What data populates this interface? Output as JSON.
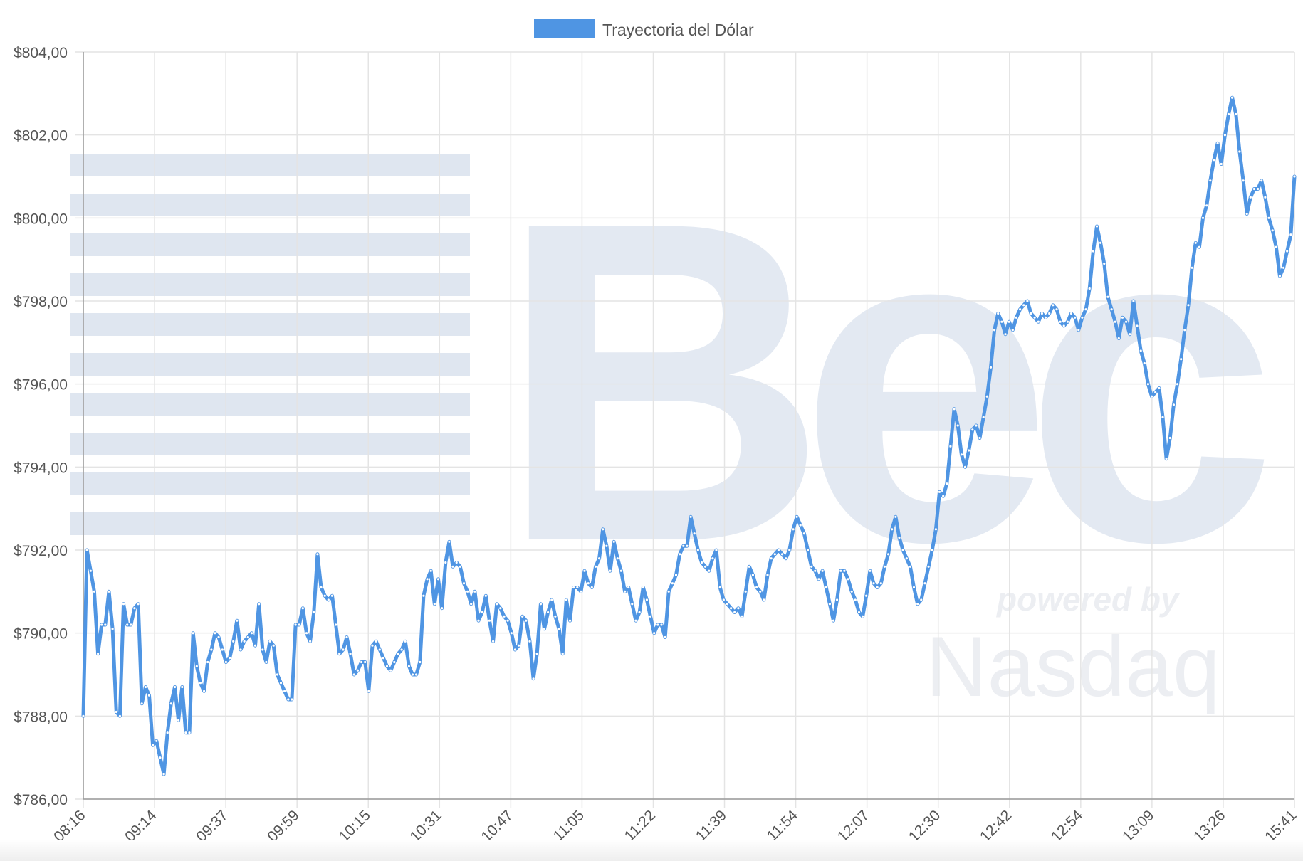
{
  "watermark": {
    "logo_text": "Bec",
    "powered_text": "powered by",
    "brand_text": "Nasdaq"
  },
  "colors": {
    "line": "#4f95e3",
    "grid": "#e4e4e4",
    "axis": "#9a9a9a",
    "watermark": "#dfe6f0"
  },
  "chart_data": {
    "type": "line",
    "title": "",
    "xlabel": "",
    "ylabel": "",
    "legend": {
      "label": "Trayectoria del Dólar",
      "position": "top-center"
    },
    "grid": true,
    "ylim": [
      786,
      804
    ],
    "y_ticks": [
      {
        "value": 804,
        "label": "$804,00"
      },
      {
        "value": 802,
        "label": "$802,00"
      },
      {
        "value": 800,
        "label": "$800,00"
      },
      {
        "value": 798,
        "label": "$798,00"
      },
      {
        "value": 796,
        "label": "$796,00"
      },
      {
        "value": 794,
        "label": "$794,00"
      },
      {
        "value": 792,
        "label": "$792,00"
      },
      {
        "value": 790,
        "label": "$790,00"
      },
      {
        "value": 788,
        "label": "$788,00"
      },
      {
        "value": 786,
        "label": "$786,00"
      }
    ],
    "x_ticks": [
      "08:16",
      "09:14",
      "09:37",
      "09:59",
      "10:15",
      "10:31",
      "10:47",
      "11:05",
      "11:22",
      "11:39",
      "11:54",
      "12:07",
      "12:30",
      "12:42",
      "12:54",
      "13:09",
      "13:26",
      "15:41"
    ],
    "series": [
      {
        "name": "Trayectoria del Dólar",
        "values": [
          788.0,
          792.0,
          791.5,
          791.0,
          789.5,
          790.2,
          790.2,
          791.0,
          790.1,
          788.1,
          788.0,
          790.7,
          790.2,
          790.2,
          790.6,
          790.7,
          788.3,
          788.7,
          788.5,
          787.3,
          787.4,
          787.0,
          786.6,
          787.6,
          788.3,
          788.7,
          787.9,
          788.7,
          787.6,
          787.6,
          790.0,
          789.2,
          788.8,
          788.6,
          789.3,
          789.6,
          790.0,
          789.9,
          789.6,
          789.3,
          789.4,
          789.8,
          790.3,
          789.6,
          789.8,
          789.9,
          790.0,
          789.7,
          790.7,
          789.6,
          789.3,
          789.8,
          789.7,
          789.0,
          788.8,
          788.6,
          788.4,
          788.4,
          790.2,
          790.2,
          790.6,
          790.0,
          789.8,
          790.5,
          791.9,
          791.1,
          790.9,
          790.8,
          790.9,
          790.2,
          789.5,
          789.6,
          789.9,
          789.5,
          789.0,
          789.1,
          789.3,
          789.3,
          788.6,
          789.7,
          789.8,
          789.6,
          789.4,
          789.2,
          789.1,
          789.3,
          789.5,
          789.6,
          789.8,
          789.2,
          789.0,
          789.0,
          789.3,
          790.9,
          791.3,
          791.5,
          790.7,
          791.3,
          790.6,
          791.7,
          792.2,
          791.6,
          791.7,
          791.6,
          791.2,
          791.0,
          790.7,
          791.0,
          790.3,
          790.5,
          790.9,
          790.3,
          789.8,
          790.7,
          790.6,
          790.4,
          790.3,
          790.0,
          789.6,
          789.7,
          790.4,
          790.3,
          789.8,
          788.9,
          789.5,
          790.7,
          790.1,
          790.5,
          790.8,
          790.4,
          790.1,
          789.5,
          790.8,
          790.3,
          791.1,
          791.1,
          791.0,
          791.5,
          791.2,
          791.1,
          791.6,
          791.8,
          792.5,
          792.1,
          791.5,
          792.2,
          791.8,
          791.5,
          791.0,
          791.1,
          790.7,
          790.3,
          790.5,
          791.1,
          790.8,
          790.4,
          790.0,
          790.2,
          790.2,
          789.9,
          791.0,
          791.2,
          791.4,
          791.9,
          792.1,
          792.1,
          792.8,
          792.4,
          792.0,
          791.7,
          791.6,
          791.5,
          791.8,
          792.0,
          791.1,
          790.8,
          790.7,
          790.6,
          790.5,
          790.6,
          790.4,
          791.0,
          791.6,
          791.4,
          791.1,
          791.0,
          790.8,
          791.4,
          791.8,
          791.9,
          792.0,
          791.9,
          791.8,
          792.0,
          792.5,
          792.8,
          792.6,
          792.4,
          792.0,
          791.6,
          791.5,
          791.3,
          791.5,
          791.1,
          790.7,
          790.3,
          790.8,
          791.5,
          791.5,
          791.3,
          791.0,
          790.8,
          790.5,
          790.4,
          790.9,
          791.5,
          791.2,
          791.1,
          791.2,
          791.6,
          791.9,
          792.5,
          792.8,
          792.3,
          792.0,
          791.8,
          791.6,
          791.1,
          790.7,
          790.8,
          791.2,
          791.6,
          792.0,
          792.5,
          793.4,
          793.3,
          793.6,
          794.5,
          795.4,
          795.0,
          794.3,
          794.0,
          794.4,
          794.9,
          795.0,
          794.7,
          795.2,
          795.7,
          796.4,
          797.3,
          797.7,
          797.5,
          797.2,
          797.5,
          797.3,
          797.6,
          797.8,
          797.9,
          798.0,
          797.7,
          797.6,
          797.5,
          797.7,
          797.6,
          797.7,
          797.9,
          797.8,
          797.5,
          797.4,
          797.5,
          797.7,
          797.6,
          797.3,
          797.6,
          797.8,
          798.3,
          799.2,
          799.8,
          799.4,
          798.9,
          798.1,
          797.8,
          797.5,
          797.1,
          797.6,
          797.5,
          797.2,
          798.0,
          797.4,
          796.8,
          796.5,
          796.0,
          795.7,
          795.8,
          795.9,
          795.2,
          794.2,
          794.7,
          795.5,
          796.0,
          796.6,
          797.3,
          797.9,
          798.8,
          799.4,
          799.3,
          800.0,
          800.3,
          800.9,
          801.4,
          801.8,
          801.3,
          802.0,
          802.5,
          802.9,
          802.5,
          801.6,
          800.9,
          800.1,
          800.5,
          800.7,
          800.7,
          800.9,
          800.5,
          800.0,
          799.7,
          799.3,
          798.6,
          798.8,
          799.2,
          799.6,
          801.0
        ]
      }
    ]
  }
}
